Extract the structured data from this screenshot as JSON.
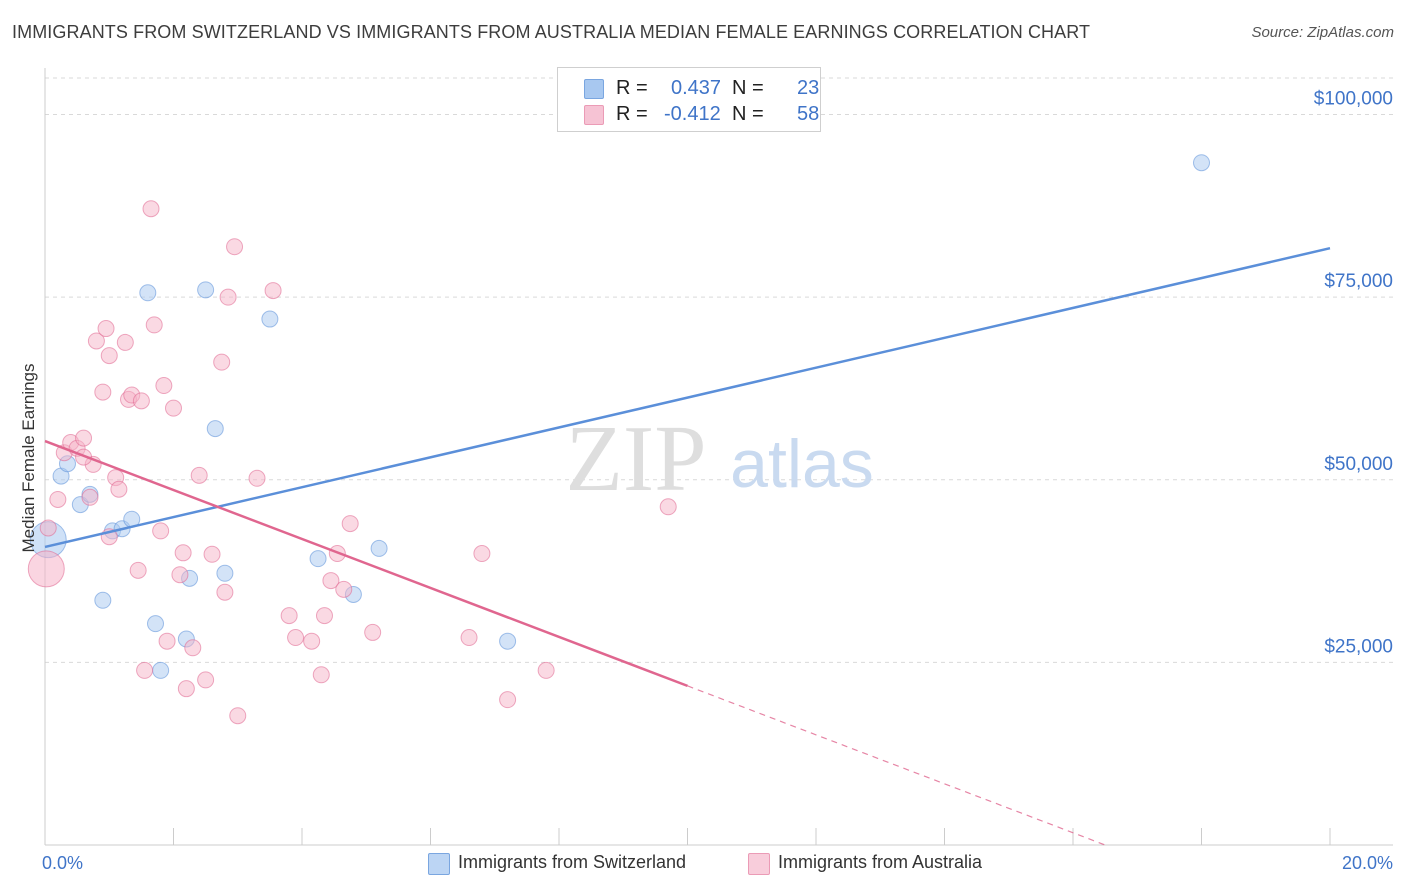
{
  "title": "IMMIGRANTS FROM SWITZERLAND VS IMMIGRANTS FROM AUSTRALIA MEDIAN FEMALE EARNINGS CORRELATION CHART",
  "source": "Source: ZipAtlas.com",
  "watermark": {
    "zip": "ZIP",
    "atlas": "atlas"
  },
  "legend_stats": [
    {
      "r_label": "R =",
      "r_value": "0.437",
      "n_label": "N =",
      "n_value": "23",
      "color": "#a8c8f0"
    },
    {
      "r_label": "R =",
      "r_value": "-0.412",
      "n_label": "N =",
      "n_value": "58",
      "color": "#f6b3c8"
    }
  ],
  "chart_data": {
    "type": "scatter",
    "title": "IMMIGRANTS FROM SWITZERLAND VS IMMIGRANTS FROM AUSTRALIA MEDIAN FEMALE EARNINGS CORRELATION CHART",
    "xlabel": "",
    "ylabel": "Median Female Earnings",
    "xlim": [
      0,
      20
    ],
    "ylim": [
      0,
      105000
    ],
    "x_tick_labels": [
      "0.0%",
      "20.0%"
    ],
    "y_ticks": [
      25000,
      50000,
      75000,
      100000
    ],
    "y_tick_labels": [
      "$25,000",
      "$50,000",
      "$75,000",
      "$100,000"
    ],
    "grid": true,
    "legend_position": "bottom",
    "series": [
      {
        "name": "Immigrants from Switzerland",
        "color": "#5b8fd9",
        "fill": "#a8c8f0",
        "trend": {
          "x0": 0,
          "y0": 40800,
          "x1": 20,
          "y1": 81700,
          "dash_from": null
        },
        "points": [
          {
            "x": 0.05,
            "y": 41800,
            "big": true
          },
          {
            "x": 0.25,
            "y": 50500
          },
          {
            "x": 0.35,
            "y": 52200
          },
          {
            "x": 0.55,
            "y": 46600
          },
          {
            "x": 0.7,
            "y": 48000
          },
          {
            "x": 0.9,
            "y": 33500
          },
          {
            "x": 1.05,
            "y": 43000
          },
          {
            "x": 1.2,
            "y": 43300
          },
          {
            "x": 1.35,
            "y": 44600
          },
          {
            "x": 1.6,
            "y": 75600
          },
          {
            "x": 1.72,
            "y": 30300
          },
          {
            "x": 1.8,
            "y": 23900
          },
          {
            "x": 2.2,
            "y": 28200
          },
          {
            "x": 2.25,
            "y": 36500
          },
          {
            "x": 2.5,
            "y": 76000
          },
          {
            "x": 2.65,
            "y": 57000
          },
          {
            "x": 2.8,
            "y": 37200
          },
          {
            "x": 3.5,
            "y": 72000
          },
          {
            "x": 4.25,
            "y": 39200
          },
          {
            "x": 4.8,
            "y": 34300
          },
          {
            "x": 5.2,
            "y": 40600
          },
          {
            "x": 7.2,
            "y": 27900
          },
          {
            "x": 18.0,
            "y": 93400
          }
        ]
      },
      {
        "name": "Immigrants from Australia",
        "color": "#e0668f",
        "fill": "#f6b3c8",
        "trend": {
          "x0": 0,
          "y0": 55300,
          "x1": 16.5,
          "y1": 0,
          "dash_from": 10.0
        },
        "points": [
          {
            "x": 0.02,
            "y": 37800,
            "big": true
          },
          {
            "x": 0.05,
            "y": 43400
          },
          {
            "x": 0.2,
            "y": 47300
          },
          {
            "x": 0.3,
            "y": 53700
          },
          {
            "x": 0.4,
            "y": 55100
          },
          {
            "x": 0.5,
            "y": 54300
          },
          {
            "x": 0.6,
            "y": 55700
          },
          {
            "x": 0.7,
            "y": 47600
          },
          {
            "x": 0.75,
            "y": 52100
          },
          {
            "x": 0.8,
            "y": 69000
          },
          {
            "x": 0.9,
            "y": 62000
          },
          {
            "x": 0.95,
            "y": 70700
          },
          {
            "x": 1.0,
            "y": 67000
          },
          {
            "x": 1.0,
            "y": 42200
          },
          {
            "x": 1.1,
            "y": 50300
          },
          {
            "x": 1.25,
            "y": 68800
          },
          {
            "x": 1.3,
            "y": 61000
          },
          {
            "x": 1.35,
            "y": 61600
          },
          {
            "x": 1.45,
            "y": 37600
          },
          {
            "x": 1.5,
            "y": 60800
          },
          {
            "x": 1.55,
            "y": 23900
          },
          {
            "x": 1.65,
            "y": 87100
          },
          {
            "x": 1.7,
            "y": 71200
          },
          {
            "x": 1.8,
            "y": 43000
          },
          {
            "x": 1.85,
            "y": 62900
          },
          {
            "x": 1.9,
            "y": 27900
          },
          {
            "x": 2.0,
            "y": 59800
          },
          {
            "x": 2.1,
            "y": 37000
          },
          {
            "x": 2.15,
            "y": 40000
          },
          {
            "x": 2.2,
            "y": 21400
          },
          {
            "x": 2.3,
            "y": 27000
          },
          {
            "x": 2.4,
            "y": 50600
          },
          {
            "x": 2.5,
            "y": 22600
          },
          {
            "x": 2.6,
            "y": 39800
          },
          {
            "x": 2.75,
            "y": 66100
          },
          {
            "x": 2.8,
            "y": 34600
          },
          {
            "x": 2.85,
            "y": 75000
          },
          {
            "x": 2.95,
            "y": 81900
          },
          {
            "x": 3.0,
            "y": 17700
          },
          {
            "x": 3.3,
            "y": 50200
          },
          {
            "x": 3.55,
            "y": 75900
          },
          {
            "x": 3.8,
            "y": 31400
          },
          {
            "x": 3.9,
            "y": 28400
          },
          {
            "x": 4.15,
            "y": 27900
          },
          {
            "x": 4.3,
            "y": 23300
          },
          {
            "x": 4.35,
            "y": 31400
          },
          {
            "x": 4.45,
            "y": 36200
          },
          {
            "x": 4.55,
            "y": 39900
          },
          {
            "x": 4.65,
            "y": 35000
          },
          {
            "x": 4.75,
            "y": 44000
          },
          {
            "x": 5.1,
            "y": 29100
          },
          {
            "x": 6.6,
            "y": 28400
          },
          {
            "x": 6.8,
            "y": 39900
          },
          {
            "x": 7.2,
            "y": 19900
          },
          {
            "x": 7.8,
            "y": 23900
          },
          {
            "x": 9.7,
            "y": 46300
          },
          {
            "x": 0.6,
            "y": 53100
          },
          {
            "x": 1.15,
            "y": 48700
          }
        ]
      }
    ]
  }
}
